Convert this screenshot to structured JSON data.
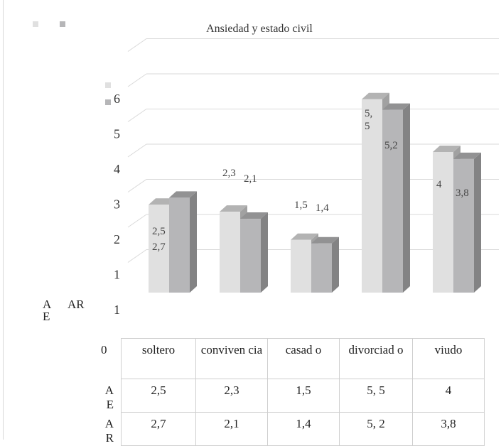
{
  "chart_data": {
    "type": "bar",
    "title": "Ansiedad y estado civil",
    "categories": [
      "soltero",
      "convivencia",
      "casado",
      "divorciado",
      "viudo"
    ],
    "series": [
      {
        "name": "AE",
        "values": [
          2.5,
          2.3,
          1.5,
          5.5,
          4
        ],
        "labels": [
          "2,5",
          "2,3",
          "1,5",
          "5,\n5",
          "4"
        ],
        "color": "#e0e0e0"
      },
      {
        "name": "AR",
        "values": [
          2.7,
          2.1,
          1.4,
          5.2,
          3.8
        ],
        "labels": [
          "2,7",
          "2,1",
          "1,4",
          "5,2",
          "3,8"
        ],
        "color": "#b6b6b8"
      }
    ],
    "yticks": [
      "1",
      "2",
      "3",
      "4",
      "5",
      "6"
    ],
    "zero_label": "0",
    "ylim": [
      0,
      6
    ],
    "grid": true,
    "legend_position": "left"
  },
  "table": {
    "header": [
      "soltero",
      "conviven cia",
      "casad o",
      "divorciad o",
      "viudo"
    ],
    "rows": [
      {
        "name": "A E",
        "values": [
          "2,5",
          "2,3",
          "1,5",
          "5, 5",
          "4"
        ]
      },
      {
        "name": "A R",
        "values": [
          "2,7",
          "2,1",
          "1,4",
          "5, 2",
          "3,8"
        ]
      }
    ]
  },
  "side_legend": {
    "ae": "A E",
    "ar": "AR"
  }
}
